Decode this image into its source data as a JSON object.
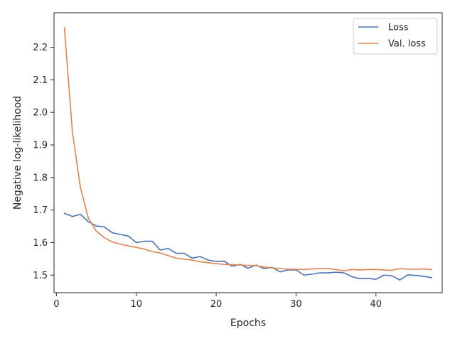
{
  "chart_data": {
    "type": "line",
    "title": "",
    "xlabel": "Epochs",
    "ylabel": "Negative log-likelihood",
    "xlim": [
      -0.3,
      48.3
    ],
    "ylim": [
      1.446,
      2.306
    ],
    "x_ticks": [
      0,
      10,
      20,
      30,
      40
    ],
    "y_ticks": [
      1.5,
      1.6,
      1.7,
      1.8,
      1.9,
      2.0,
      2.1,
      2.2
    ],
    "x_tick_labels": [
      "0",
      "10",
      "20",
      "30",
      "40"
    ],
    "y_tick_labels": [
      "1.5",
      "1.6",
      "1.7",
      "1.8",
      "1.9",
      "2.0",
      "2.1",
      "2.2"
    ],
    "grid": false,
    "legend_position": "top-right",
    "x": [
      1,
      2,
      3,
      4,
      5,
      6,
      7,
      8,
      9,
      10,
      11,
      12,
      13,
      14,
      15,
      16,
      17,
      18,
      19,
      20,
      21,
      22,
      23,
      24,
      25,
      26,
      27,
      28,
      29,
      30,
      31,
      32,
      33,
      34,
      35,
      36,
      37,
      38,
      39,
      40,
      41,
      42,
      43,
      44,
      45,
      46,
      47
    ],
    "series": [
      {
        "name": "Loss",
        "color": "#4c72b0",
        "values": [
          1.69,
          1.68,
          1.687,
          1.664,
          1.651,
          1.648,
          1.63,
          1.625,
          1.62,
          1.6,
          1.604,
          1.604,
          1.577,
          1.582,
          1.567,
          1.567,
          1.552,
          1.557,
          1.546,
          1.542,
          1.543,
          1.527,
          1.533,
          1.521,
          1.531,
          1.52,
          1.524,
          1.51,
          1.516,
          1.516,
          1.5,
          1.503,
          1.507,
          1.507,
          1.509,
          1.507,
          1.495,
          1.489,
          1.49,
          1.487,
          1.5,
          1.498,
          1.485,
          1.501,
          1.499,
          1.496,
          1.492
        ]
      },
      {
        "name": "Val. loss",
        "color": "#dd8452",
        "values": [
          2.26,
          1.94,
          1.77,
          1.675,
          1.635,
          1.615,
          1.602,
          1.595,
          1.59,
          1.585,
          1.58,
          1.572,
          1.568,
          1.56,
          1.552,
          1.549,
          1.546,
          1.541,
          1.538,
          1.535,
          1.533,
          1.532,
          1.531,
          1.53,
          1.529,
          1.525,
          1.522,
          1.52,
          1.518,
          1.518,
          1.517,
          1.519,
          1.52,
          1.52,
          1.517,
          1.513,
          1.517,
          1.516,
          1.517,
          1.517,
          1.516,
          1.515,
          1.52,
          1.518,
          1.518,
          1.519,
          1.517
        ]
      }
    ]
  }
}
